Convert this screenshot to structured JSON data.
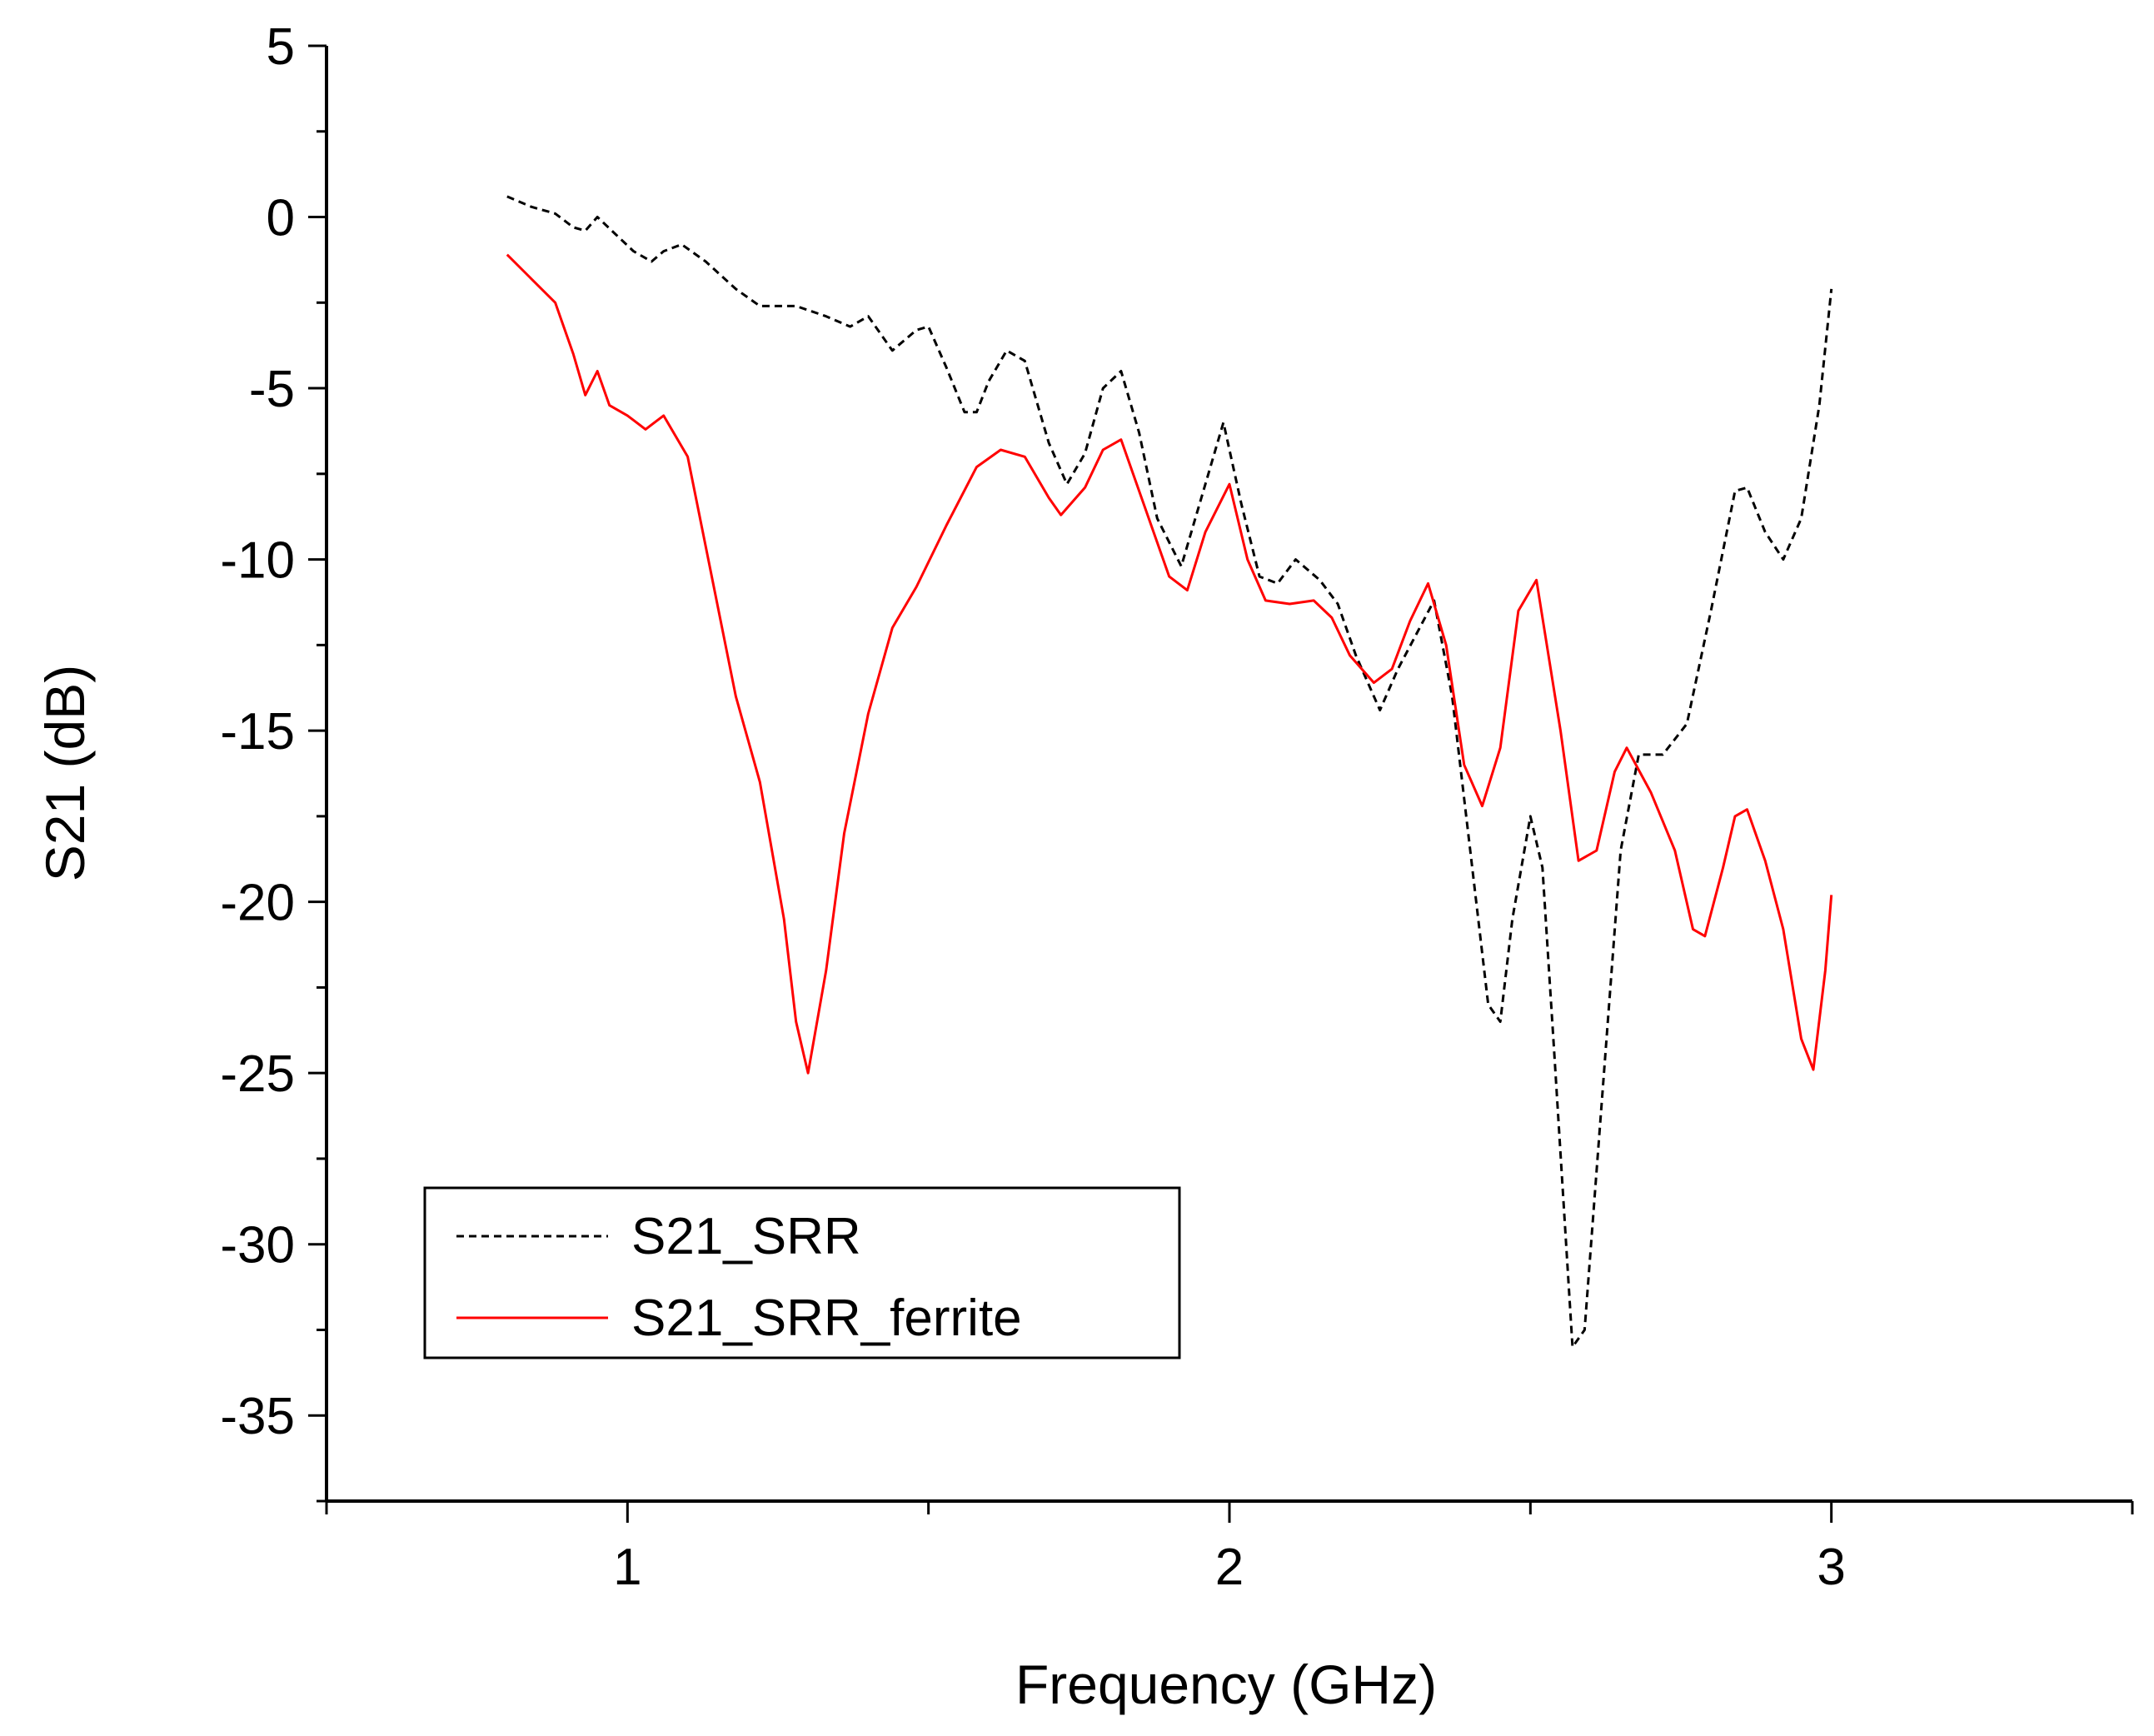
{
  "chart_data": {
    "type": "line",
    "xlabel": "Frequency (GHz)",
    "ylabel": "S21 (dB)",
    "xlim": [
      0.5,
      3.5
    ],
    "ylim": [
      -37.5,
      5
    ],
    "x_ticks": [
      "1",
      "2",
      "3"
    ],
    "y_ticks": [
      "5",
      "0",
      "-5",
      "-10",
      "-15",
      "-20",
      "-25",
      "-30",
      "-35"
    ],
    "x_tick_values": [
      1,
      2,
      3
    ],
    "y_tick_values": [
      5,
      0,
      -5,
      -10,
      -15,
      -20,
      -25,
      -30,
      -35
    ],
    "grid": false,
    "legend_position": "bottom-left",
    "series": [
      {
        "name": "S21_SRR",
        "color": "#000000",
        "dash": "dashed",
        "points": [
          [
            0.8,
            0.6
          ],
          [
            0.84,
            0.3
          ],
          [
            0.88,
            0.1
          ],
          [
            0.91,
            -0.3
          ],
          [
            0.93,
            -0.4
          ],
          [
            0.95,
            0.0
          ],
          [
            0.98,
            -0.5
          ],
          [
            1.01,
            -1.0
          ],
          [
            1.04,
            -1.3
          ],
          [
            1.06,
            -1.0
          ],
          [
            1.09,
            -0.8
          ],
          [
            1.13,
            -1.3
          ],
          [
            1.18,
            -2.1
          ],
          [
            1.22,
            -2.6
          ],
          [
            1.28,
            -2.6
          ],
          [
            1.33,
            -2.9
          ],
          [
            1.37,
            -3.2
          ],
          [
            1.4,
            -2.9
          ],
          [
            1.44,
            -3.9
          ],
          [
            1.48,
            -3.3
          ],
          [
            1.5,
            -3.2
          ],
          [
            1.53,
            -4.4
          ],
          [
            1.56,
            -5.7
          ],
          [
            1.58,
            -5.7
          ],
          [
            1.6,
            -4.8
          ],
          [
            1.63,
            -3.9
          ],
          [
            1.66,
            -4.2
          ],
          [
            1.7,
            -6.6
          ],
          [
            1.73,
            -7.8
          ],
          [
            1.76,
            -6.9
          ],
          [
            1.79,
            -5.0
          ],
          [
            1.82,
            -4.5
          ],
          [
            1.85,
            -6.3
          ],
          [
            1.88,
            -8.8
          ],
          [
            1.92,
            -10.2
          ],
          [
            1.95,
            -8.4
          ],
          [
            1.99,
            -6.0
          ],
          [
            2.02,
            -8.4
          ],
          [
            2.05,
            -10.5
          ],
          [
            2.08,
            -10.7
          ],
          [
            2.11,
            -10.0
          ],
          [
            2.15,
            -10.6
          ],
          [
            2.18,
            -11.3
          ],
          [
            2.21,
            -12.8
          ],
          [
            2.25,
            -14.4
          ],
          [
            2.28,
            -13.2
          ],
          [
            2.31,
            -12.2
          ],
          [
            2.34,
            -11.2
          ],
          [
            2.37,
            -14.0
          ],
          [
            2.4,
            -18.5
          ],
          [
            2.43,
            -23.0
          ],
          [
            2.45,
            -23.5
          ],
          [
            2.47,
            -20.5
          ],
          [
            2.5,
            -17.5
          ],
          [
            2.52,
            -19.0
          ],
          [
            2.54,
            -24.5
          ],
          [
            2.57,
            -33.0
          ],
          [
            2.59,
            -32.5
          ],
          [
            2.62,
            -25.5
          ],
          [
            2.65,
            -18.5
          ],
          [
            2.68,
            -15.7
          ],
          [
            2.72,
            -15.7
          ],
          [
            2.76,
            -14.8
          ],
          [
            2.8,
            -11.5
          ],
          [
            2.84,
            -8.0
          ],
          [
            2.86,
            -7.9
          ],
          [
            2.89,
            -9.2
          ],
          [
            2.92,
            -10.0
          ],
          [
            2.95,
            -8.8
          ],
          [
            2.98,
            -5.5
          ],
          [
            3.0,
            -2.1
          ]
        ]
      },
      {
        "name": "S21_SRR_ferrite",
        "color": "#ff0000",
        "dash": "solid",
        "points": [
          [
            0.8,
            -1.1
          ],
          [
            0.84,
            -1.8
          ],
          [
            0.88,
            -2.5
          ],
          [
            0.91,
            -4.0
          ],
          [
            0.93,
            -5.2
          ],
          [
            0.95,
            -4.5
          ],
          [
            0.97,
            -5.5
          ],
          [
            1.0,
            -5.8
          ],
          [
            1.03,
            -6.2
          ],
          [
            1.06,
            -5.8
          ],
          [
            1.1,
            -7.0
          ],
          [
            1.14,
            -10.5
          ],
          [
            1.18,
            -14.0
          ],
          [
            1.22,
            -16.5
          ],
          [
            1.26,
            -20.5
          ],
          [
            1.28,
            -23.5
          ],
          [
            1.3,
            -25.0
          ],
          [
            1.33,
            -22.0
          ],
          [
            1.36,
            -18.0
          ],
          [
            1.4,
            -14.5
          ],
          [
            1.44,
            -12.0
          ],
          [
            1.48,
            -10.8
          ],
          [
            1.53,
            -9.0
          ],
          [
            1.58,
            -7.3
          ],
          [
            1.62,
            -6.8
          ],
          [
            1.66,
            -7.0
          ],
          [
            1.7,
            -8.2
          ],
          [
            1.72,
            -8.7
          ],
          [
            1.76,
            -7.9
          ],
          [
            1.79,
            -6.8
          ],
          [
            1.82,
            -6.5
          ],
          [
            1.86,
            -8.5
          ],
          [
            1.9,
            -10.5
          ],
          [
            1.93,
            -10.9
          ],
          [
            1.96,
            -9.2
          ],
          [
            2.0,
            -7.8
          ],
          [
            2.03,
            -10.0
          ],
          [
            2.06,
            -11.2
          ],
          [
            2.1,
            -11.3
          ],
          [
            2.14,
            -11.2
          ],
          [
            2.17,
            -11.7
          ],
          [
            2.2,
            -12.8
          ],
          [
            2.24,
            -13.6
          ],
          [
            2.27,
            -13.2
          ],
          [
            2.3,
            -11.8
          ],
          [
            2.33,
            -10.7
          ],
          [
            2.36,
            -12.5
          ],
          [
            2.39,
            -16.0
          ],
          [
            2.42,
            -17.2
          ],
          [
            2.45,
            -15.5
          ],
          [
            2.48,
            -11.5
          ],
          [
            2.51,
            -10.6
          ],
          [
            2.55,
            -15.0
          ],
          [
            2.58,
            -18.8
          ],
          [
            2.61,
            -18.5
          ],
          [
            2.64,
            -16.2
          ],
          [
            2.66,
            -15.5
          ],
          [
            2.7,
            -16.8
          ],
          [
            2.74,
            -18.5
          ],
          [
            2.77,
            -20.8
          ],
          [
            2.79,
            -21.0
          ],
          [
            2.82,
            -19.0
          ],
          [
            2.84,
            -17.5
          ],
          [
            2.86,
            -17.3
          ],
          [
            2.89,
            -18.8
          ],
          [
            2.92,
            -20.8
          ],
          [
            2.95,
            -24.0
          ],
          [
            2.97,
            -24.9
          ],
          [
            2.99,
            -22.0
          ],
          [
            3.0,
            -19.8
          ]
        ]
      }
    ]
  }
}
